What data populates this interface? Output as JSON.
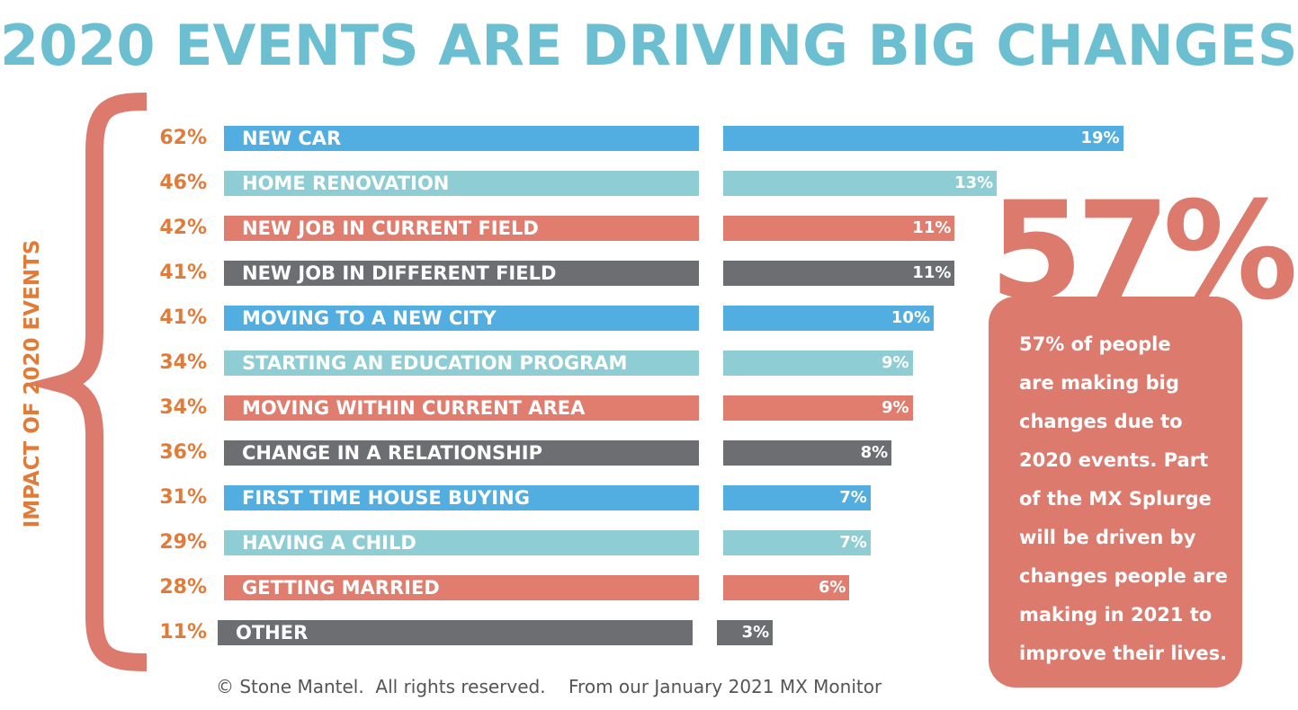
{
  "title": "2020 EVENTS ARE DRIVING BIG CHANGES",
  "colors": {
    "blue": "#52ade0",
    "teal": "#8ecdd3",
    "salmon": "#e07d6e",
    "gray": "#6d6e71",
    "orange": "#e07b39",
    "title": "#6cbfd0"
  },
  "chart_data": {
    "type": "bar",
    "orientation": "horizontal",
    "ylabel": "IMPACT OF 2020 EVENTS",
    "categories": [
      "NEW CAR",
      "HOME RENOVATION",
      "NEW JOB IN CURRENT FIELD",
      "NEW JOB IN DIFFERENT FIELD",
      "MOVING TO A NEW CITY",
      "STARTING AN EDUCATION  PROGRAM",
      "MOVING WITHIN CURRENT AREA",
      "CHANGE IN A RELATIONSHIP",
      "FIRST TIME HOUSE BUYING",
      "HAVING A CHILD",
      "GETTING MARRIED",
      "OTHER"
    ],
    "impact": [
      "62%",
      "46%",
      "42%",
      "41%",
      "41%",
      "34%",
      "34%",
      "36%",
      "31%",
      "29%",
      "28%",
      "11%"
    ],
    "values": [
      19,
      13,
      11,
      11,
      10,
      9,
      9,
      8,
      7,
      7,
      6,
      3
    ],
    "value_labels": [
      "19%",
      "13%",
      "11%",
      "11%",
      "10%",
      "9%",
      "9%",
      "8%",
      "7%",
      "7%",
      "6%",
      "3%"
    ],
    "bar_colors": [
      "blue",
      "teal",
      "salmon",
      "gray",
      "blue",
      "teal",
      "salmon",
      "gray",
      "blue",
      "teal",
      "salmon",
      "gray"
    ]
  },
  "callout": {
    "big": "57%",
    "lines": [
      "57% of people",
      "are making big",
      "changes due to",
      "2020 events. Part",
      "of the MX Splurge",
      "will be driven by",
      "changes people are",
      "making in 2021 to",
      "improve their lives."
    ]
  },
  "footer": "© Stone Mantel.  All rights reserved.    From our January 2021 MX Monitor"
}
